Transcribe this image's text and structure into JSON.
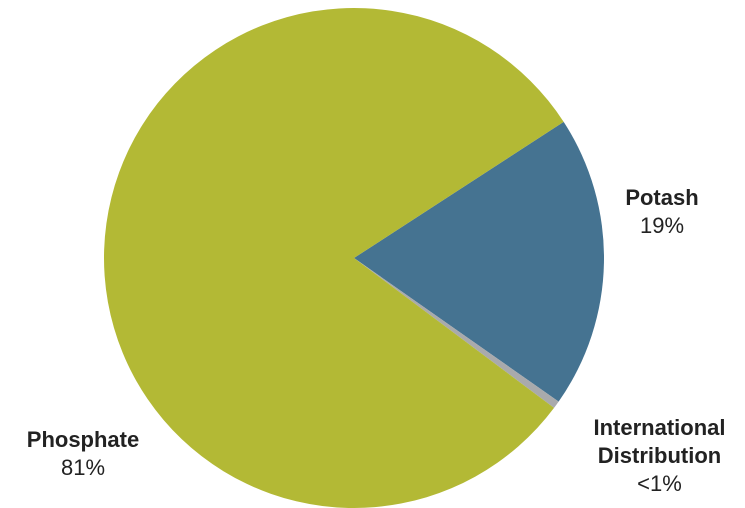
{
  "chart_data": {
    "type": "pie",
    "categories": [
      "Potash",
      "International Distribution",
      "Phosphate"
    ],
    "values": [
      19,
      0.5,
      81
    ],
    "value_labels": [
      "19%",
      "<1%",
      "81%"
    ],
    "colors": [
      "#457391",
      "#a9aaac",
      "#b3b935"
    ]
  }
}
